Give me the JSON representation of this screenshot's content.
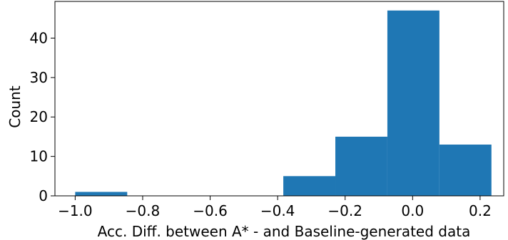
{
  "chart_data": {
    "type": "bar",
    "title": "",
    "xlabel": "Acc. Diff. between A* - and Baseline-generated data",
    "ylabel": "Count",
    "bin_edges": [
      -1.0,
      -0.8458,
      -0.6916,
      -0.5374,
      -0.3832,
      -0.229,
      -0.0748,
      0.0794,
      0.2336
    ],
    "values": [
      1,
      0,
      0,
      0,
      5,
      15,
      47,
      13
    ],
    "xlim": [
      -1.06,
      0.27
    ],
    "ylim": [
      0,
      49.3
    ],
    "xticks": [
      -1.0,
      -0.8,
      -0.6,
      -0.4,
      -0.2,
      0.0,
      0.2
    ],
    "xtick_labels": [
      "−1.0",
      "−0.8",
      "−0.6",
      "−0.4",
      "−0.2",
      "0.0",
      "0.2"
    ],
    "yticks": [
      0,
      10,
      20,
      30,
      40
    ],
    "ytick_labels": [
      "0",
      "10",
      "20",
      "30",
      "40"
    ],
    "grid": false,
    "colors": {
      "bar": "#1f77b4",
      "axis": "#000000"
    }
  }
}
